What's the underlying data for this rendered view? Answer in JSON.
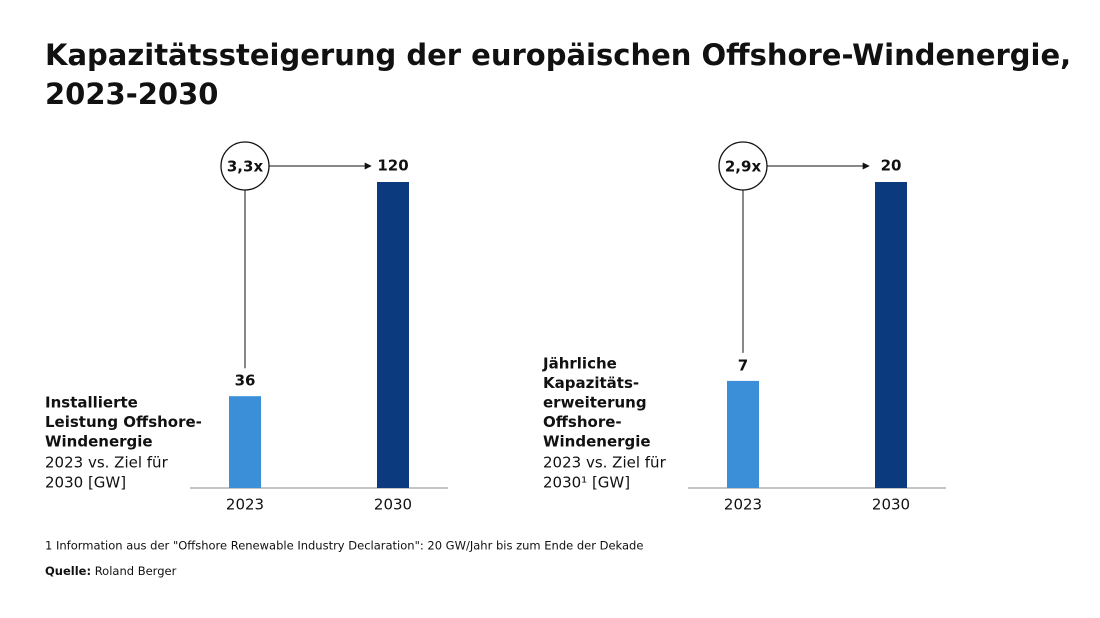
{
  "title": [
    "Kapazitätssteigerung der europäischen Offshore-Windenergie,",
    "2023-2030"
  ],
  "chart_data": [
    {
      "type": "bar",
      "label_bold": [
        "Installierte",
        "Leistung Offshore-",
        "Windenergie"
      ],
      "label_regular": [
        "2023 vs. Ziel für",
        "2030 [GW]"
      ],
      "categories": [
        "2023",
        "2030"
      ],
      "values": [
        36,
        120
      ],
      "colors": [
        "#3a8fd8",
        "#0b3a7f"
      ],
      "ylim": [
        0,
        120
      ],
      "growth_label": "3,3x"
    },
    {
      "type": "bar",
      "label_bold": [
        "Jährliche",
        "Kapazitäts-",
        "erweiterung",
        "Offshore-",
        "Windenergie"
      ],
      "label_regular": [
        "2023 vs. Ziel für",
        "2030¹ [GW]"
      ],
      "categories": [
        "2023",
        "2030"
      ],
      "values": [
        7,
        20
      ],
      "colors": [
        "#3a8fd8",
        "#0b3a7f"
      ],
      "ylim": [
        0,
        20
      ],
      "growth_label": "2,9x"
    }
  ],
  "footnote": "1  Information aus der \"Offshore Renewable Industry Declaration\": 20 GW/Jahr bis zum Ende der Dekade",
  "source_label": "Quelle:",
  "source": "Roland Berger"
}
